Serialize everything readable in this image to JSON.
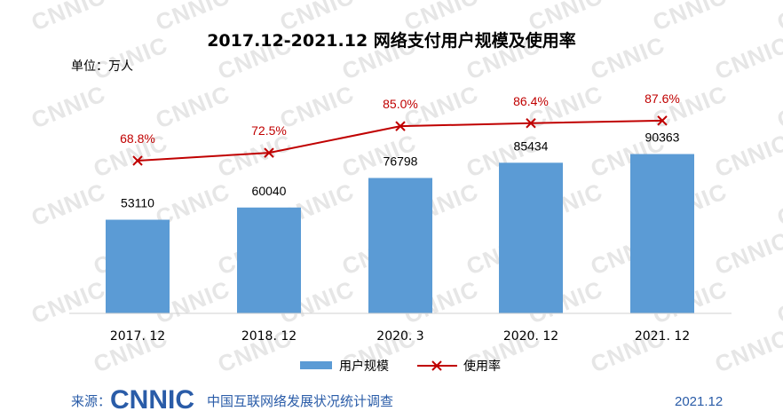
{
  "chart_data": {
    "type": "bar",
    "title": "2017.12-2021.12 网络支付用户规模及使用率",
    "unit_label": "单位：万人",
    "categories": [
      "2017. 12",
      "2018. 12",
      "2020. 3",
      "2020. 12",
      "2021. 12"
    ],
    "series": [
      {
        "name": "用户规模",
        "type": "bar",
        "color": "#5b9bd5",
        "values": [
          53110,
          60040,
          76798,
          85434,
          90363
        ],
        "labels": [
          "53110",
          "60040",
          "76798",
          "85434",
          "90363"
        ]
      },
      {
        "name": "使用率",
        "type": "line",
        "color": "#c00000",
        "marker": "x",
        "values": [
          68.8,
          72.5,
          85.0,
          86.4,
          87.6
        ],
        "labels": [
          "68.8%",
          "72.5%",
          "85.0%",
          "86.4%",
          "87.6%"
        ]
      }
    ],
    "bar_ylim": [
      0,
      100000
    ],
    "rate_ylim": [
      0,
      100
    ],
    "grid": false,
    "legend": "bottom-center"
  },
  "watermark": {
    "text": "CNNIC"
  },
  "footer": {
    "source_label": "来源：",
    "logo": "CNNIC",
    "org": "中国互联网络发展状况统计调查",
    "date": "2021.12"
  },
  "colors": {
    "bar": "#5b9bd5",
    "line": "#c00000",
    "brand": "#2a5ca8"
  }
}
